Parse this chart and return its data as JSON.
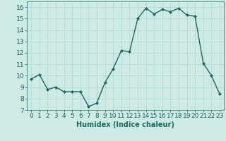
{
  "x": [
    0,
    1,
    2,
    3,
    4,
    5,
    6,
    7,
    8,
    9,
    10,
    11,
    12,
    13,
    14,
    15,
    16,
    17,
    18,
    19,
    20,
    21,
    22,
    23
  ],
  "y": [
    9.7,
    10.1,
    8.8,
    9.0,
    8.6,
    8.6,
    8.6,
    7.3,
    7.6,
    9.4,
    10.6,
    12.2,
    12.1,
    15.0,
    15.9,
    15.4,
    15.8,
    15.6,
    15.9,
    15.3,
    15.2,
    11.1,
    10.0,
    8.4
  ],
  "line_color": "#1a6b5a",
  "marker": "D",
  "marker_size": 2.0,
  "bg_color": "#cdeae6",
  "grid_color": "#b0d4d0",
  "xlabel": "Humidex (Indice chaleur)",
  "xlim": [
    -0.5,
    23.5
  ],
  "ylim": [
    7,
    16.5
  ],
  "yticks": [
    7,
    8,
    9,
    10,
    11,
    12,
    13,
    14,
    15,
    16
  ],
  "xticks": [
    0,
    1,
    2,
    3,
    4,
    5,
    6,
    7,
    8,
    9,
    10,
    11,
    12,
    13,
    14,
    15,
    16,
    17,
    18,
    19,
    20,
    21,
    22,
    23
  ],
  "xlabel_fontsize": 7,
  "tick_fontsize": 6.5,
  "line_width": 1.0
}
